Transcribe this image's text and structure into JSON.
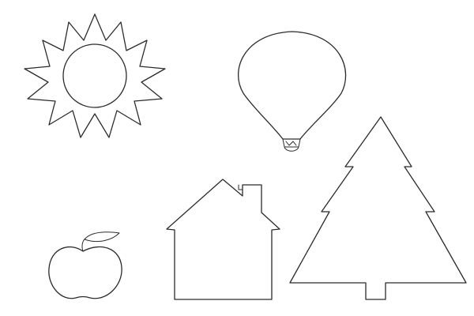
{
  "page": {
    "background": "#ffffff",
    "line_color": "#2b2b2b"
  },
  "shapes": [
    {
      "id": "sun",
      "icon": "sun-icon"
    },
    {
      "id": "hot-air-balloon",
      "icon": "hot-air-balloon-icon"
    },
    {
      "id": "apple",
      "icon": "apple-icon"
    },
    {
      "id": "house",
      "icon": "house-icon"
    },
    {
      "id": "pine-tree",
      "icon": "pine-tree-icon"
    }
  ]
}
